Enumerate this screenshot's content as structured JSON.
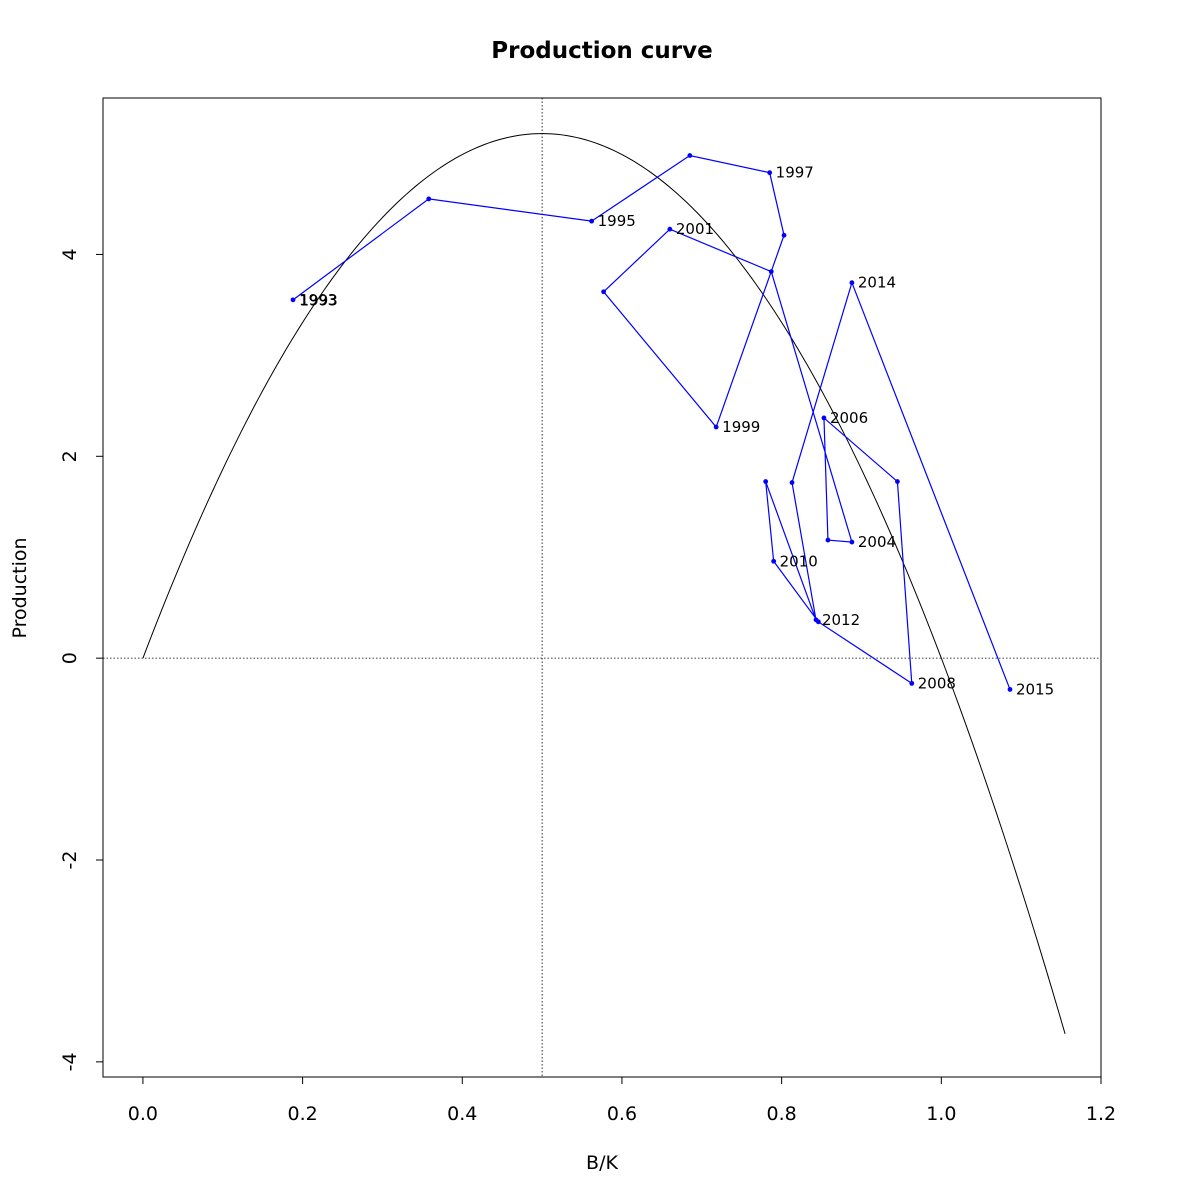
{
  "chart_data": {
    "type": "line",
    "title": "Production curve",
    "xlabel": "B/K",
    "ylabel": "Production",
    "xlim": [
      -0.05,
      1.2
    ],
    "ylim": [
      -4.15,
      5.55
    ],
    "x_ticks": [
      0.0,
      0.2,
      0.4,
      0.6,
      0.8,
      1.0,
      1.2
    ],
    "x_tick_labels": [
      "0.0",
      "0.2",
      "0.4",
      "0.6",
      "0.8",
      "1.0",
      "1.2"
    ],
    "y_ticks": [
      -4,
      -2,
      0,
      2,
      4
    ],
    "y_tick_labels": [
      "-4",
      "-2",
      "0",
      "2",
      "4"
    ],
    "reference_lines": {
      "vertical_x": 0.5,
      "horizontal_y": 0
    },
    "curve": {
      "description": "Schaefer surplus production parabola",
      "r": 2.7,
      "K": 7.7,
      "x_range": [
        0.0,
        1.155
      ],
      "color": "#000000"
    },
    "series": [
      {
        "color": "#0000ff",
        "points": [
          {
            "x": 0.188,
            "y": 3.55,
            "label": "1993"
          },
          {
            "x": 0.358,
            "y": 4.55,
            "label": ""
          },
          {
            "x": 0.562,
            "y": 4.33,
            "label": "1995"
          },
          {
            "x": 0.685,
            "y": 4.98,
            "label": ""
          },
          {
            "x": 0.785,
            "y": 4.81,
            "label": "1997"
          },
          {
            "x": 0.803,
            "y": 4.19,
            "label": ""
          },
          {
            "x": 0.718,
            "y": 2.29,
            "label": "1999"
          },
          {
            "x": 0.577,
            "y": 3.63,
            "label": ""
          },
          {
            "x": 0.66,
            "y": 4.25,
            "label": "2001"
          },
          {
            "x": 0.787,
            "y": 3.83,
            "label": ""
          },
          {
            "x": 0.888,
            "y": 1.15,
            "label": "2004"
          },
          {
            "x": 0.858,
            "y": 1.17,
            "label": ""
          },
          {
            "x": 0.853,
            "y": 2.38,
            "label": "2006"
          },
          {
            "x": 0.945,
            "y": 1.75,
            "label": ""
          },
          {
            "x": 0.963,
            "y": -0.25,
            "label": "2008"
          },
          {
            "x": 0.846,
            "y": 0.36,
            "label": ""
          },
          {
            "x": 0.79,
            "y": 0.96,
            "label": "2010"
          },
          {
            "x": 0.78,
            "y": 1.75,
            "label": ""
          },
          {
            "x": 0.843,
            "y": 0.38,
            "label": "2012"
          },
          {
            "x": 0.813,
            "y": 1.74,
            "label": ""
          },
          {
            "x": 0.888,
            "y": 3.72,
            "label": "2014"
          },
          {
            "x": 1.086,
            "y": -0.31,
            "label": "2015"
          }
        ]
      }
    ],
    "overlapping_label": {
      "x": 0.188,
      "y": 3.55,
      "label": "1993"
    }
  }
}
